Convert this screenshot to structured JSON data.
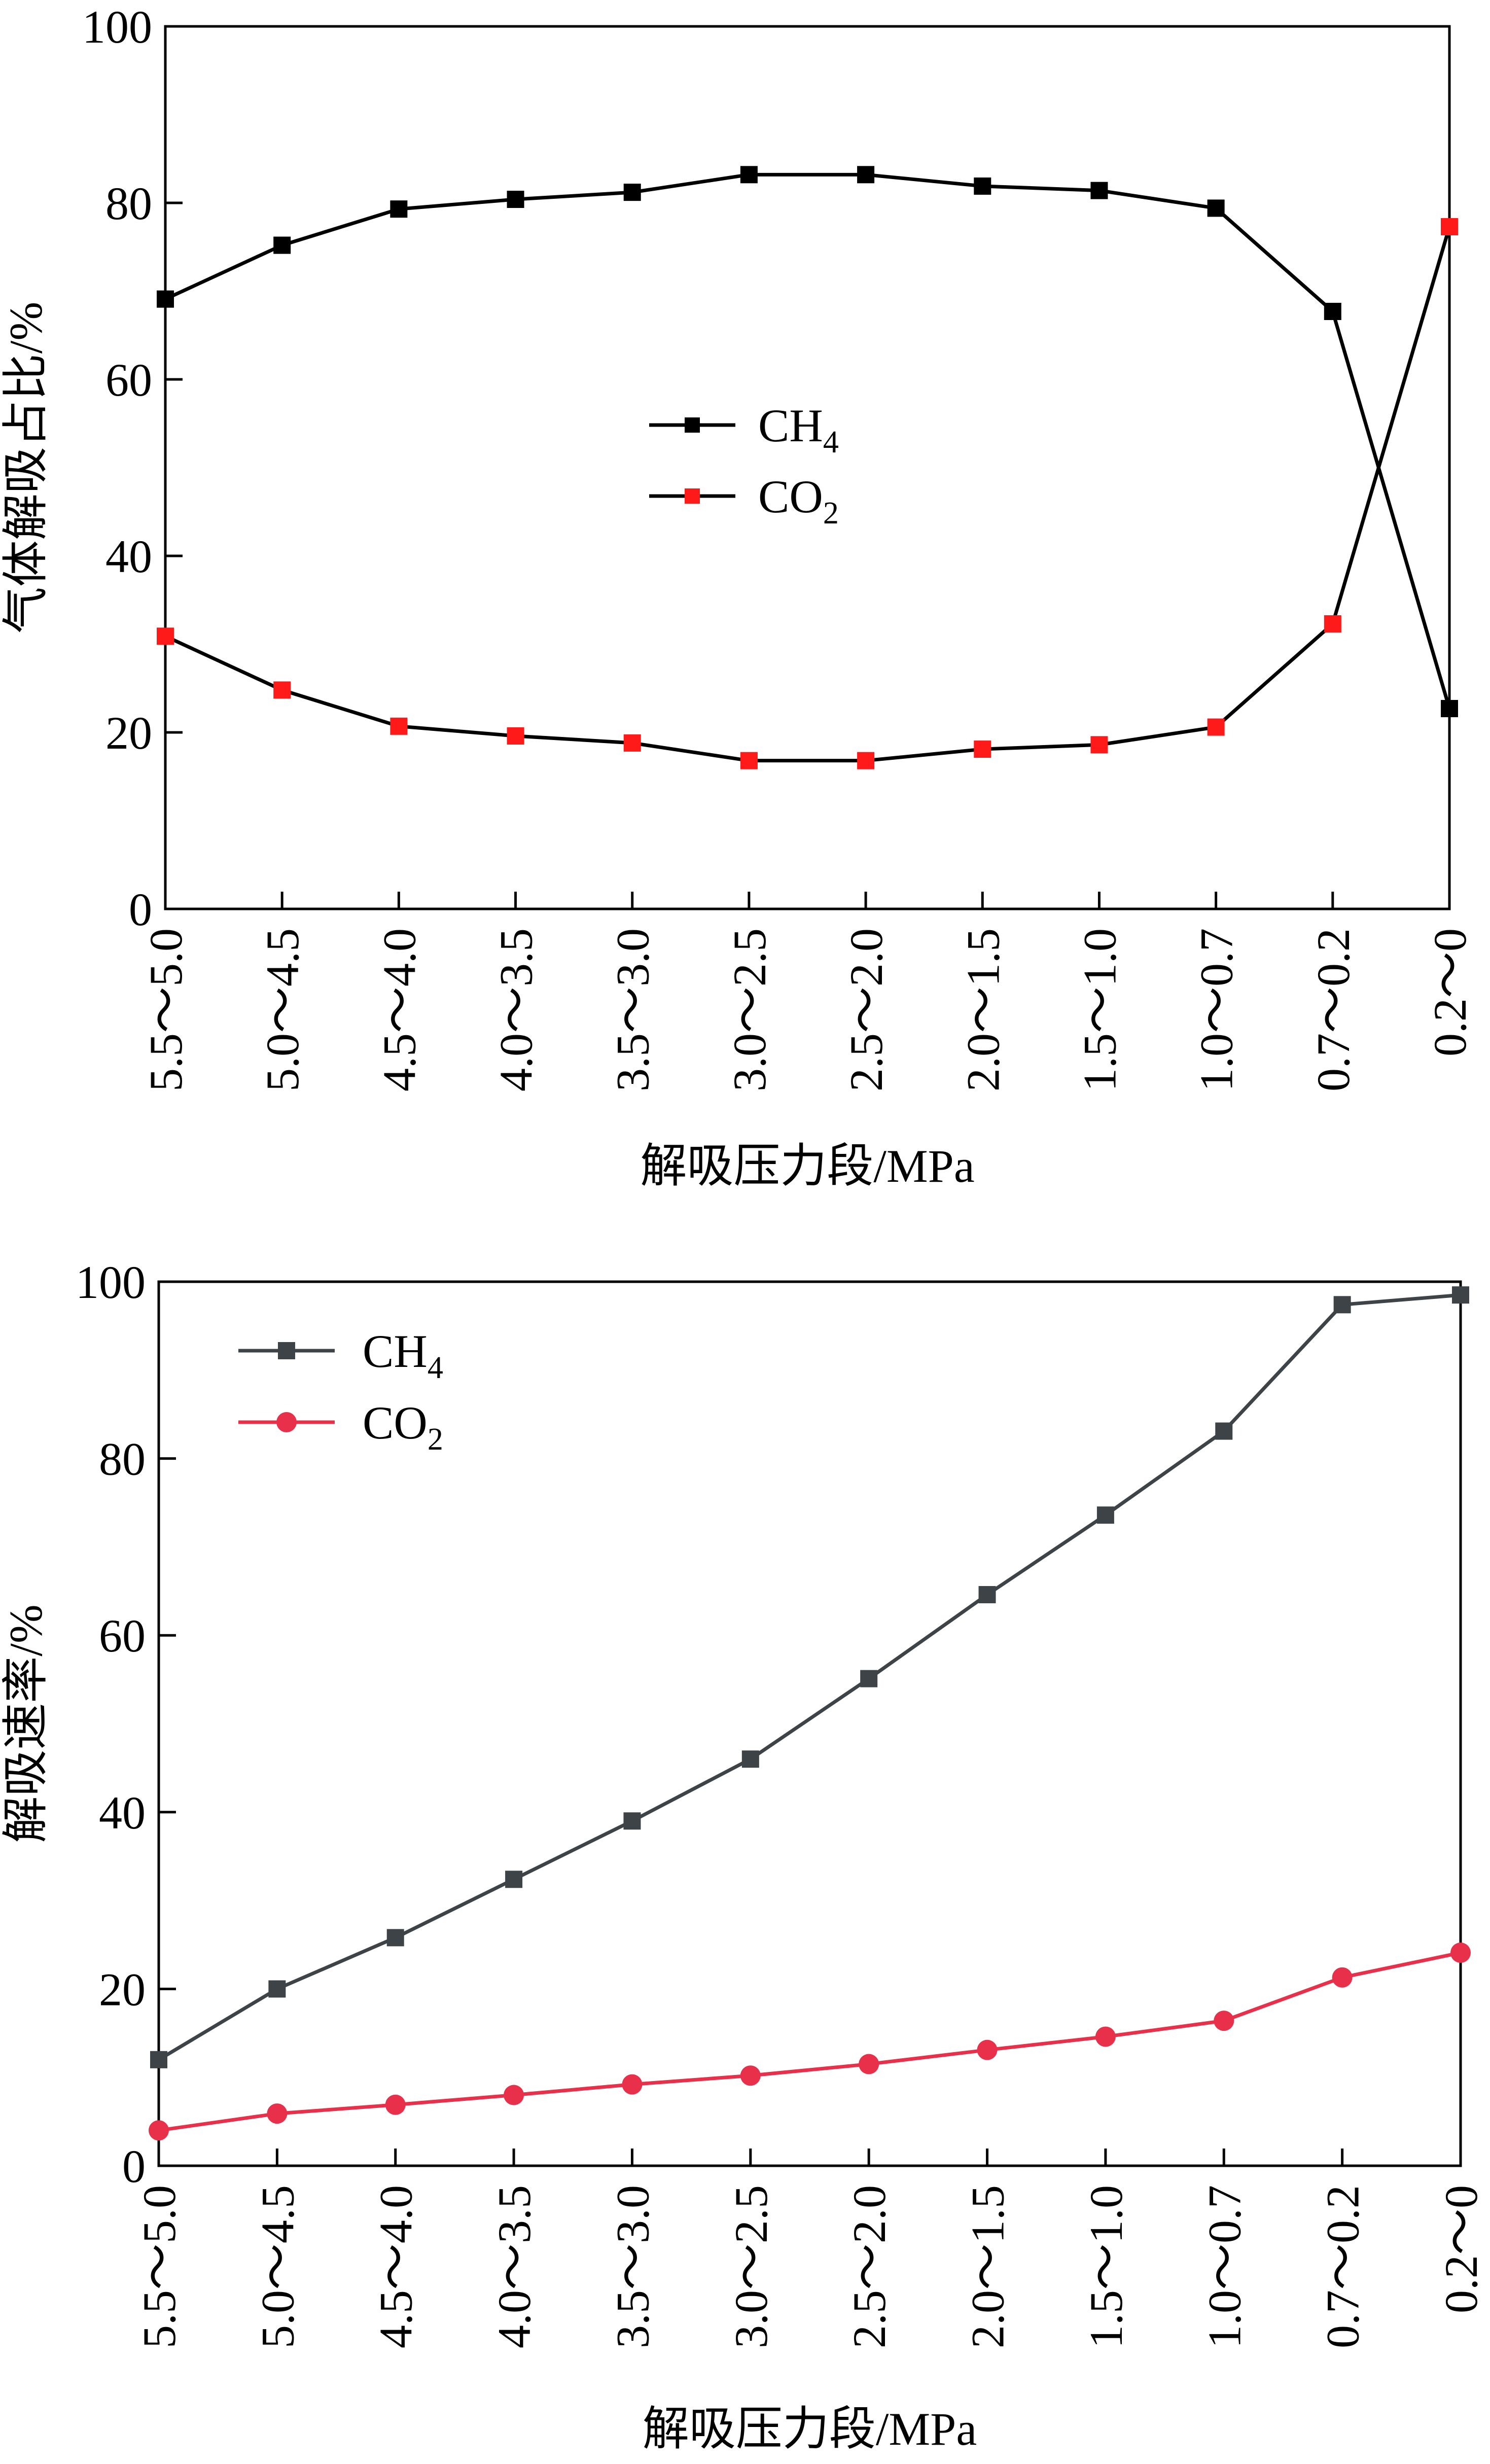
{
  "chart_data": [
    {
      "type": "line",
      "title": "",
      "xlabel": "解吸压力段/MPa",
      "ylabel": "气体解吸占比/%",
      "categories": [
        "5.5～5.0",
        "5.0～4.5",
        "4.5～4.0",
        "4.0～3.5",
        "3.5～3.0",
        "3.0～2.5",
        "2.5～2.0",
        "2.0～1.5",
        "1.5～1.0",
        "1.0～0.7",
        "0.7～0.2",
        "0.2～0"
      ],
      "ylim": [
        0,
        100
      ],
      "yticks": [
        0,
        20,
        40,
        60,
        80,
        100
      ],
      "grid": false,
      "legend_position": "center",
      "series": [
        {
          "name": "CH",
          "name_sub": "4",
          "marker": "square",
          "color": "#000000",
          "values": [
            69.1,
            75.2,
            79.3,
            80.4,
            81.2,
            83.2,
            83.2,
            81.9,
            81.4,
            79.4,
            67.7,
            22.7
          ]
        },
        {
          "name": "CO",
          "name_sub": "2",
          "marker": "square",
          "color": "#ff1a1a",
          "line_color": "#000000",
          "values": [
            30.9,
            24.8,
            20.7,
            19.6,
            18.8,
            16.8,
            16.8,
            18.1,
            18.6,
            20.6,
            32.3,
            77.3
          ]
        }
      ]
    },
    {
      "type": "line",
      "title": "",
      "xlabel": "解吸压力段/MPa",
      "ylabel": "解吸速率/%",
      "categories": [
        "5.5～5.0",
        "5.0～4.5",
        "4.5～4.0",
        "4.0～3.5",
        "3.5～3.0",
        "3.0～2.5",
        "2.5～2.0",
        "2.0～1.5",
        "1.5～1.0",
        "1.0～0.7",
        "0.7～0.2",
        "0.2～0"
      ],
      "ylim": [
        0,
        100
      ],
      "yticks": [
        0,
        20,
        40,
        60,
        80,
        100
      ],
      "grid": false,
      "legend_position": "top-left",
      "series": [
        {
          "name": "CH",
          "name_sub": "4",
          "marker": "square",
          "color": "#3d4347",
          "values": [
            12.0,
            20.0,
            25.8,
            32.4,
            39.0,
            46.0,
            55.1,
            64.6,
            73.6,
            83.1,
            97.4,
            98.5
          ]
        },
        {
          "name": "CO",
          "name_sub": "2",
          "marker": "circle",
          "color": "#e8304a",
          "values": [
            4.0,
            5.9,
            6.9,
            8.0,
            9.2,
            10.2,
            11.5,
            13.1,
            14.6,
            16.4,
            21.3,
            24.1
          ]
        }
      ]
    }
  ]
}
